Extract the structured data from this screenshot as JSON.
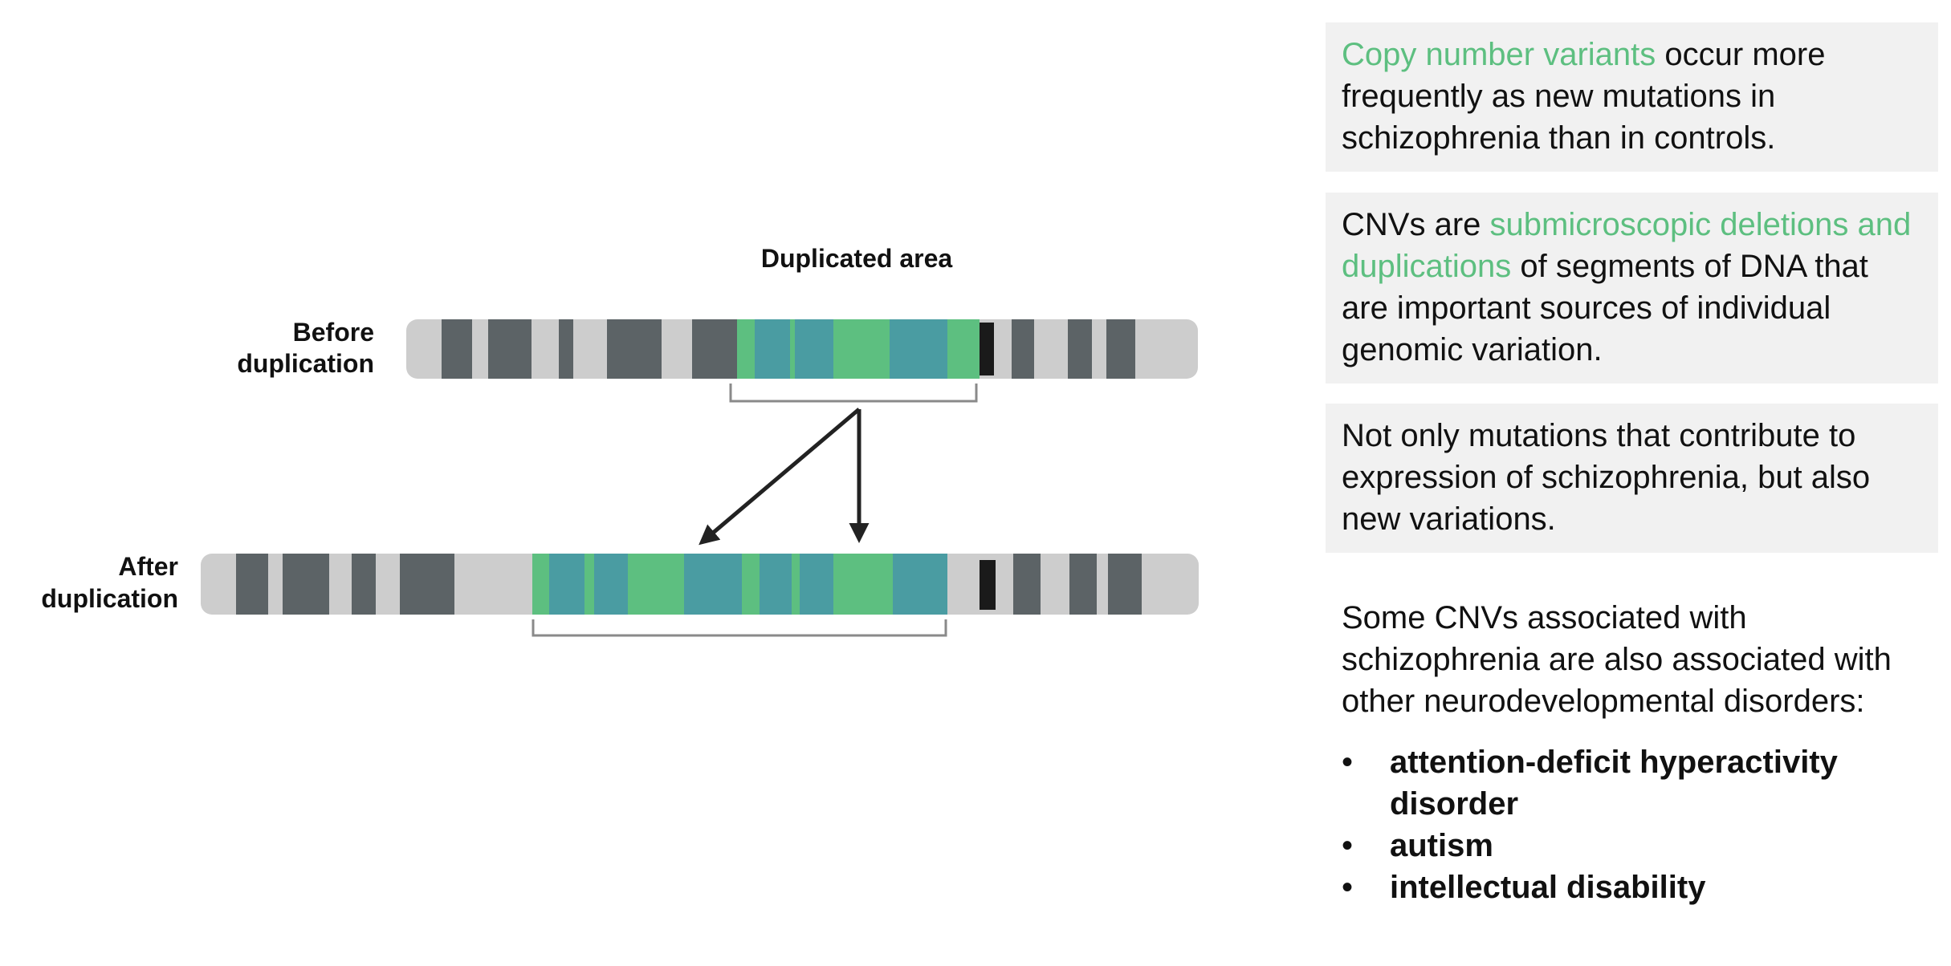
{
  "diagram": {
    "duplicated_area_label": "Duplicated area",
    "before_label_line1": "Before",
    "before_label_line2": "duplication",
    "after_label_line1": "After",
    "after_label_line2": "duplication",
    "colors": {
      "chromosome": "#cdcdcd",
      "band_dark": "#5c6366",
      "band_teal": "#4a9ca2",
      "band_green": "#5dbf80",
      "centromere": "#1a1a1a",
      "bracket": "#8a8a8a",
      "arrow": "#222222"
    }
  },
  "panels": {
    "p1": {
      "highlight": "Copy number variants",
      "rest": " occur more frequently as new mutations in schizophrenia than in controls."
    },
    "p2": {
      "pre": "CNVs are ",
      "highlight": "submicroscopic deletions and duplications",
      "rest": " of segments of DNA that are important sources of individual genomic variation."
    },
    "p3": {
      "text": "Not only mutations that contribute to expression of schizophrenia, but also new variations."
    },
    "p4": {
      "text": "Some CNVs associated with schizophrenia are also associated with other neurodevelopmental disorders:",
      "items": [
        "attention-deficit hyperactivity disorder",
        "autism",
        "intellectual disability"
      ]
    }
  },
  "accent_color": "#5dbf80"
}
